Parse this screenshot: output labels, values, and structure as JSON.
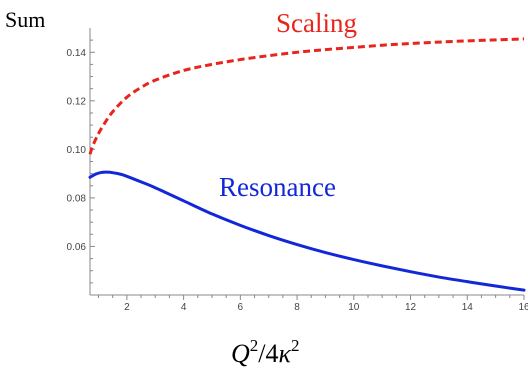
{
  "chart_data": {
    "type": "line",
    "ylabel": "Sum",
    "xlabel": {
      "q": "Q",
      "exp1": "2",
      "mid": "/4",
      "kappa": "κ",
      "exp2": "2"
    },
    "xlim": [
      0.7,
      16
    ],
    "ylim": [
      0.04,
      0.15
    ],
    "x_ticks": [
      2,
      4,
      6,
      8,
      10,
      12,
      14,
      16
    ],
    "y_ticks": [
      0.06,
      0.08,
      0.1,
      0.12,
      0.14
    ],
    "y_tick_labels": [
      "0.06",
      "0.08",
      "0.10",
      "0.12",
      "0.14"
    ],
    "grid": false,
    "series": [
      {
        "name": "Scaling",
        "color": "#e8241d",
        "style": "dashed",
        "x": [
          0.7,
          0.8,
          1,
          1.2,
          1.5,
          2,
          2.5,
          3,
          4,
          5,
          6,
          7,
          8,
          9,
          10,
          11,
          12,
          13,
          14,
          15,
          16
        ],
        "y": [
          0.098,
          0.1015,
          0.1065,
          0.1105,
          0.1155,
          0.1215,
          0.1255,
          0.1285,
          0.1325,
          0.135,
          0.137,
          0.1386,
          0.14,
          0.1411,
          0.142,
          0.1429,
          0.1436,
          0.1442,
          0.1447,
          0.1451,
          0.1455
        ]
      },
      {
        "name": "Resonance",
        "color": "#1228d8",
        "style": "solid",
        "x": [
          0.7,
          0.9,
          1.1,
          1.3,
          1.5,
          1.8,
          2,
          2.5,
          3,
          4,
          5,
          6,
          7,
          8,
          9,
          10,
          11,
          12,
          13,
          14,
          15,
          16
        ],
        "y": [
          0.0885,
          0.0898,
          0.0905,
          0.0906,
          0.0904,
          0.0897,
          0.0889,
          0.0866,
          0.0842,
          0.0788,
          0.0734,
          0.0687,
          0.0645,
          0.0608,
          0.0575,
          0.0546,
          0.052,
          0.0496,
          0.0474,
          0.0455,
          0.0437,
          0.042
        ]
      }
    ]
  }
}
